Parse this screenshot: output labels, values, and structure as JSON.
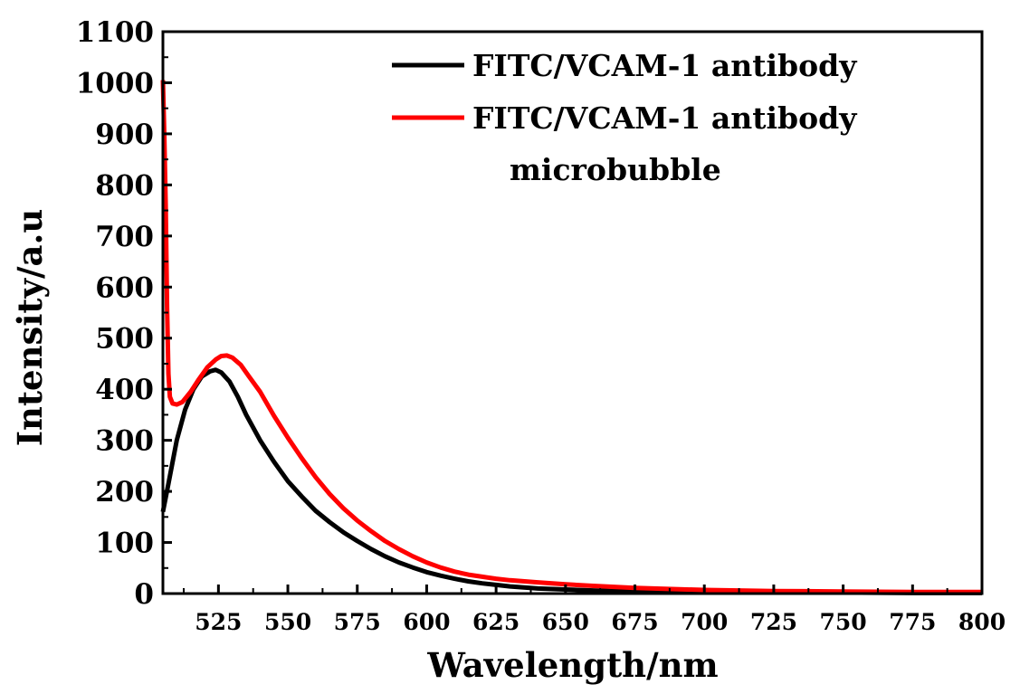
{
  "chart_data": {
    "type": "line",
    "xlabel": "Wavelength/nm",
    "ylabel": "Intensity/a.u",
    "xlim": [
      505,
      800
    ],
    "ylim": [
      0,
      1100
    ],
    "x_ticks": [
      525,
      550,
      575,
      600,
      625,
      650,
      675,
      700,
      725,
      750,
      775,
      800
    ],
    "y_ticks": [
      0,
      100,
      200,
      300,
      400,
      500,
      600,
      700,
      800,
      900,
      1000,
      1100
    ],
    "grid": false,
    "legend_position": "top-right",
    "series": [
      {
        "name": "FITC/VCAM-1 antibody",
        "color": "#000000",
        "points": [
          [
            505,
            160
          ],
          [
            507,
            215
          ],
          [
            510,
            300
          ],
          [
            513,
            360
          ],
          [
            516,
            400
          ],
          [
            519,
            425
          ],
          [
            522,
            435
          ],
          [
            524,
            438
          ],
          [
            526,
            433
          ],
          [
            529,
            415
          ],
          [
            532,
            385
          ],
          [
            535,
            350
          ],
          [
            540,
            300
          ],
          [
            545,
            258
          ],
          [
            550,
            220
          ],
          [
            555,
            190
          ],
          [
            560,
            162
          ],
          [
            565,
            140
          ],
          [
            570,
            120
          ],
          [
            575,
            103
          ],
          [
            580,
            87
          ],
          [
            585,
            73
          ],
          [
            590,
            61
          ],
          [
            595,
            51
          ],
          [
            600,
            42
          ],
          [
            605,
            35
          ],
          [
            610,
            29
          ],
          [
            615,
            24
          ],
          [
            620,
            20
          ],
          [
            625,
            17
          ],
          [
            630,
            14
          ],
          [
            640,
            10
          ],
          [
            650,
            8
          ],
          [
            660,
            6
          ],
          [
            675,
            4
          ],
          [
            700,
            3
          ],
          [
            725,
            2
          ],
          [
            750,
            2
          ],
          [
            775,
            1
          ],
          [
            800,
            1
          ]
        ]
      },
      {
        "name": "FITC/VCAM-1 antibody microbubble",
        "color": "#ff0000",
        "points": [
          [
            505,
            1005
          ],
          [
            505.5,
            900
          ],
          [
            506,
            760
          ],
          [
            506.5,
            560
          ],
          [
            507,
            430
          ],
          [
            507.5,
            385
          ],
          [
            508.5,
            372
          ],
          [
            510,
            370
          ],
          [
            512,
            375
          ],
          [
            515,
            395
          ],
          [
            518,
            420
          ],
          [
            521,
            443
          ],
          [
            524,
            458
          ],
          [
            526,
            465
          ],
          [
            528,
            466
          ],
          [
            530,
            462
          ],
          [
            533,
            448
          ],
          [
            536,
            425
          ],
          [
            540,
            395
          ],
          [
            545,
            348
          ],
          [
            550,
            305
          ],
          [
            555,
            265
          ],
          [
            560,
            228
          ],
          [
            565,
            195
          ],
          [
            570,
            167
          ],
          [
            575,
            143
          ],
          [
            580,
            122
          ],
          [
            585,
            103
          ],
          [
            590,
            87
          ],
          [
            595,
            73
          ],
          [
            600,
            61
          ],
          [
            605,
            51
          ],
          [
            610,
            43
          ],
          [
            615,
            37
          ],
          [
            620,
            33
          ],
          [
            625,
            29
          ],
          [
            630,
            26
          ],
          [
            640,
            22
          ],
          [
            650,
            18
          ],
          [
            660,
            15
          ],
          [
            675,
            11
          ],
          [
            700,
            7
          ],
          [
            725,
            5
          ],
          [
            750,
            4
          ],
          [
            775,
            3
          ],
          [
            800,
            3
          ]
        ]
      }
    ],
    "legend": {
      "items": [
        {
          "label": "FITC/VCAM-1 antibody",
          "label_line2": "",
          "color": "#000000"
        },
        {
          "label": "FITC/VCAM-1 antibody",
          "label_line2": "microbubble",
          "color": "#ff0000"
        }
      ]
    }
  }
}
